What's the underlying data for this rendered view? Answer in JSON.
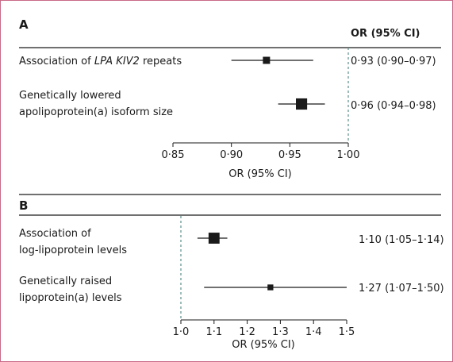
{
  "chart_data": [
    {
      "type": "forest",
      "panel": "A",
      "header": "OR (95% CI)",
      "xlabel": "OR (95% CI)",
      "xlim": [
        0.85,
        1.0
      ],
      "ticks": [
        "0·85",
        "0·90",
        "0·95",
        "1·00"
      ],
      "tick_values": [
        0.85,
        0.9,
        0.95,
        1.0
      ],
      "reference_line": 1.0,
      "rows": [
        {
          "label_parts": [
            {
              "text": "Association of "
            },
            {
              "text": "LPA KIV2",
              "italic": true
            },
            {
              "text": " repeats"
            }
          ],
          "or": 0.93,
          "lower": 0.9,
          "upper": 0.97,
          "ci_text": "0·93 (0·90–0·97)",
          "weight": 1
        },
        {
          "label_lines": [
            "Genetically lowered",
            "apolipoprotein(a) isoform size"
          ],
          "or": 0.96,
          "lower": 0.94,
          "upper": 0.98,
          "ci_text": "0·96 (0·94–0·98)",
          "weight": 3
        }
      ]
    },
    {
      "type": "forest",
      "panel": "B",
      "xlabel": "OR (95% CI)",
      "xlim": [
        1.0,
        1.5
      ],
      "ticks": [
        "1·0",
        "1·1",
        "1·2",
        "1·3",
        "1·4",
        "1·5"
      ],
      "tick_values": [
        1.0,
        1.1,
        1.2,
        1.3,
        1.4,
        1.5
      ],
      "reference_line": 1.0,
      "rows": [
        {
          "label_lines": [
            "Association of",
            "log-lipoprotein levels"
          ],
          "or": 1.1,
          "lower": 1.05,
          "upper": 1.14,
          "ci_text": "1·10 (1·05–1·14)",
          "weight": 5
        },
        {
          "label_lines": [
            "Genetically raised",
            "lipoprotein(a) levels"
          ],
          "or": 1.27,
          "lower": 1.07,
          "upper": 1.5,
          "ci_text": "1·27 (1·07–1·50)",
          "weight": 1
        }
      ]
    }
  ],
  "colors": {
    "frame": "#c96a87",
    "ink": "#1a1a1a",
    "reference": "#5b8f8c"
  }
}
